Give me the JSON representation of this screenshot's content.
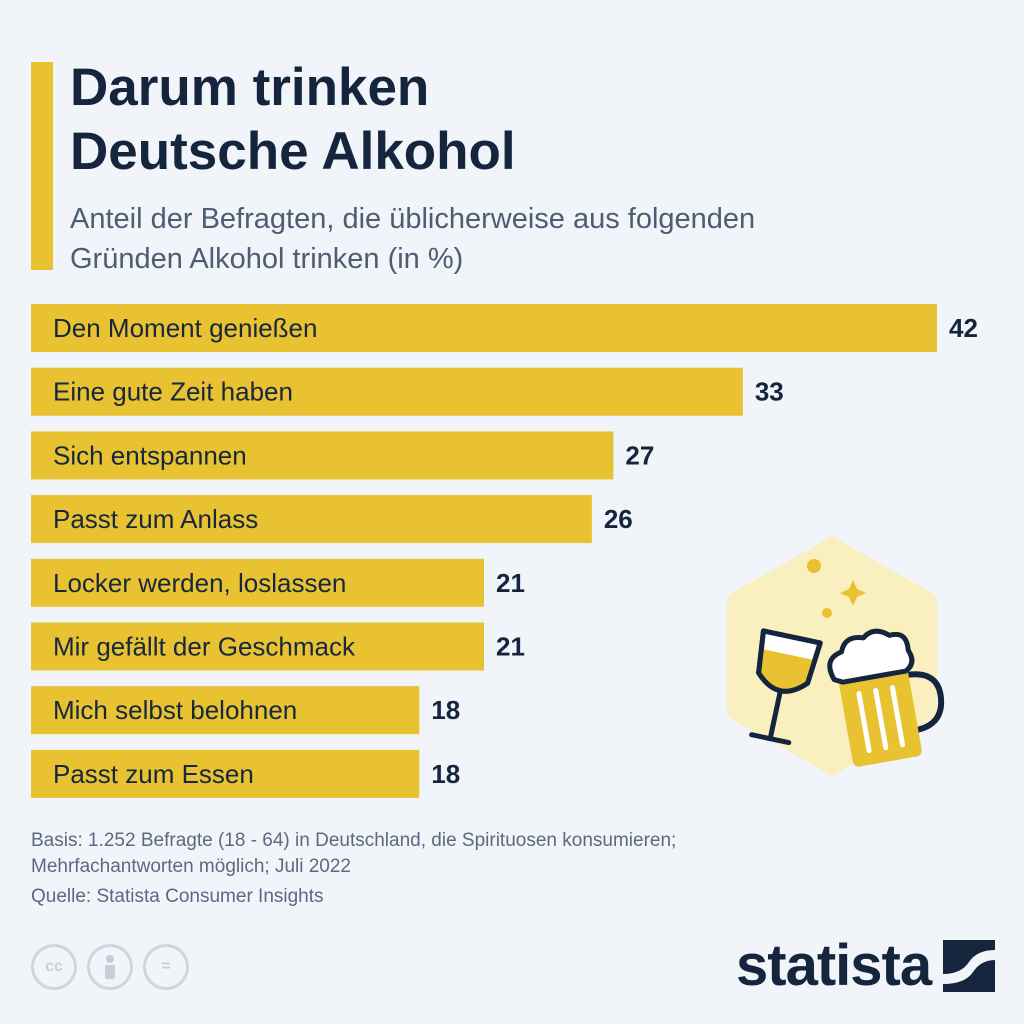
{
  "header": {
    "title_line1": "Darum trinken",
    "title_line2": "Deutsche Alkohol",
    "subtitle_line1": "Anteil der Befragten, die üblicherweise aus folgenden",
    "subtitle_line2": "Gründen Alkohol trinken (in %)"
  },
  "chart_data": {
    "type": "bar",
    "orientation": "horizontal",
    "categories": [
      "Den Moment genießen",
      "Eine gute Zeit haben",
      "Sich entspannen",
      "Passt zum Anlass",
      "Locker werden, loslassen",
      "Mir gefällt der Geschmack",
      "Mich selbst belohnen",
      "Passt zum Essen"
    ],
    "values": [
      42,
      33,
      27,
      26,
      21,
      21,
      18,
      18
    ],
    "title": "Darum trinken Deutsche Alkohol",
    "subtitle": "Anteil der Befragten, die üblicherweise aus folgenden Gründen Alkohol trinken (in %)",
    "xlim": [
      0,
      42
    ],
    "grid": false,
    "bar_color": "#e8c230"
  },
  "footer": {
    "basis_line1": "Basis: 1.252 Befragte (18 - 64) in Deutschland, die Spirituosen konsumieren;",
    "basis_line2": "Mehrfachantworten möglich; Juli 2022",
    "source": "Quelle: Statista Consumer Insights",
    "license_icons": [
      "cc-icon",
      "person-icon",
      "equals-icon"
    ],
    "license_cc_text": "cc",
    "license_equals_text": "=",
    "brand": "statista"
  },
  "colors": {
    "background": "#f1f4f9",
    "accent": "#e8c230",
    "title": "#14253d",
    "text": "#17273e",
    "muted": "#5b6a80"
  },
  "illustration": {
    "icons": [
      "wine-glass-icon",
      "beer-mug-icon",
      "sparkle-icon"
    ]
  }
}
